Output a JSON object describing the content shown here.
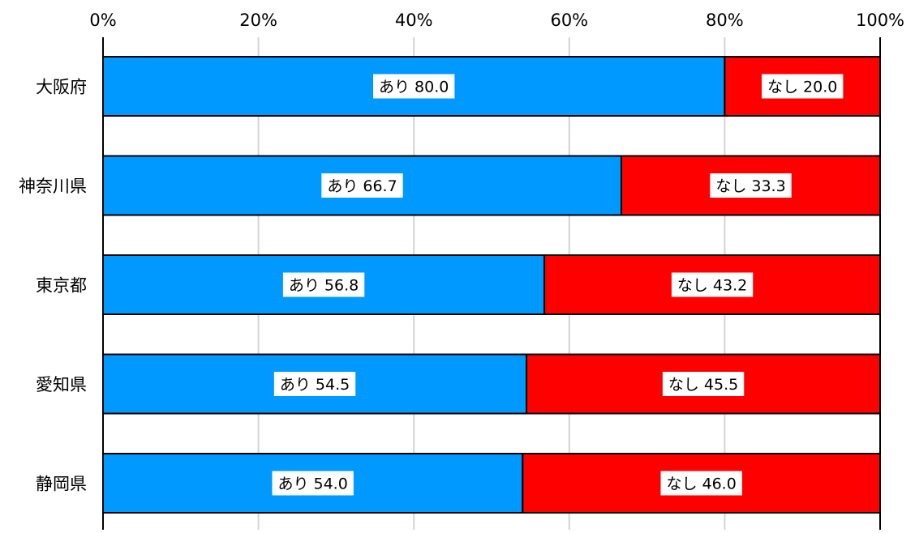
{
  "chart_data": {
    "type": "bar",
    "orientation": "horizontal",
    "stacked": "percent",
    "title": "",
    "xlabel": "",
    "ylabel": "",
    "xlim": [
      0,
      100
    ],
    "x_ticks": [
      "0%",
      "20%",
      "40%",
      "60%",
      "80%",
      "100%"
    ],
    "x_axis_position": "top",
    "grid": true,
    "legend": "none",
    "categories": [
      "大阪府",
      "神奈川県",
      "東京都",
      "愛知県",
      "静岡県"
    ],
    "series": [
      {
        "name": "あり",
        "color": "#0099ff",
        "values": [
          80.0,
          66.7,
          56.8,
          54.5,
          54.0
        ],
        "value_labels": [
          "80.0",
          "66.7",
          "56.8",
          "54.5",
          "54.0"
        ]
      },
      {
        "name": "なし",
        "color": "#ff0000",
        "values": [
          20.0,
          33.3,
          43.2,
          45.5,
          46.0
        ],
        "value_labels": [
          "20.0",
          "33.3",
          "43.2",
          "45.5",
          "46.0"
        ]
      }
    ]
  }
}
